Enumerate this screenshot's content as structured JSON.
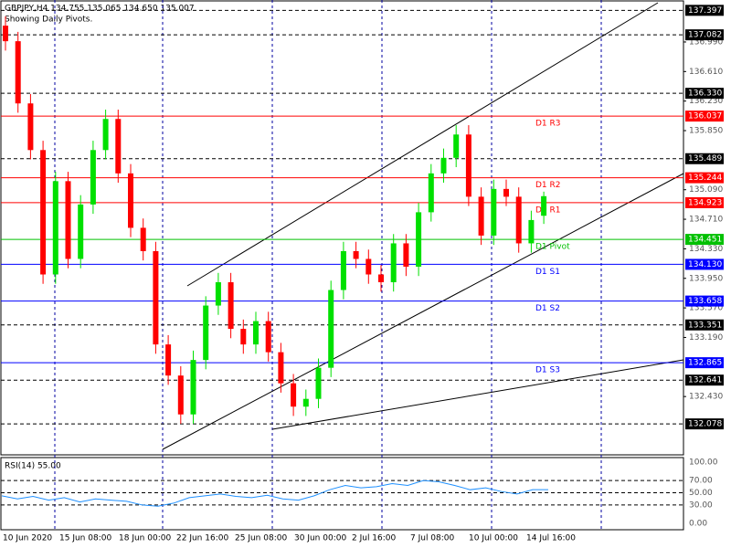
{
  "chart_data": {
    "type": "candlestick",
    "title": "GBPJPY,H4 134.755 135.065 134.650 135.007",
    "subtitle": "Showing Daily Pivots.",
    "up_color": "#00e000",
    "down_color": "#ff0000",
    "ylim": [
      131.68,
      137.53
    ],
    "yticks": [
      {
        "value": 136.99,
        "label": "136.990"
      },
      {
        "value": 136.61,
        "label": "136.610"
      },
      {
        "value": 136.23,
        "label": "136.230"
      },
      {
        "value": 135.85,
        "label": "135.850"
      },
      {
        "value": 135.09,
        "label": "135.090"
      },
      {
        "value": 134.71,
        "label": "134.710"
      },
      {
        "value": 134.33,
        "label": "134.330"
      },
      {
        "value": 133.95,
        "label": "133.950"
      },
      {
        "value": 133.57,
        "label": "133.570"
      },
      {
        "value": 133.19,
        "label": "133.190"
      },
      {
        "value": 132.43,
        "label": "132.430"
      }
    ],
    "levels": [
      {
        "value": 137.397,
        "label": "137.397"
      },
      {
        "value": 137.082,
        "label": "137.082"
      },
      {
        "value": 136.33,
        "label": "136.330"
      },
      {
        "value": 135.489,
        "label": "135.489"
      },
      {
        "value": 133.351,
        "label": "133.351"
      },
      {
        "value": 132.641,
        "label": "132.641"
      },
      {
        "value": 132.078,
        "label": "132.078"
      }
    ],
    "pivots": [
      {
        "name": "D1 R3",
        "value": 136.037,
        "label": "136.037",
        "color": "#ff0000"
      },
      {
        "name": "D1 R2",
        "value": 135.244,
        "label": "135.244",
        "color": "#ff0000"
      },
      {
        "name": "D1 R1",
        "value": 134.923,
        "label": "134.923",
        "color": "#ff0000"
      },
      {
        "name": "D1 Pivot",
        "value": 134.451,
        "label": "134.451",
        "color": "#00c000"
      },
      {
        "name": "D1 S1",
        "value": 134.13,
        "label": "134.130",
        "color": "#0000ff"
      },
      {
        "name": "D1 S2",
        "value": 133.658,
        "label": "133.658",
        "color": "#0000ff"
      },
      {
        "name": "D1 S3",
        "value": 132.865,
        "label": "132.865",
        "color": "#0000ff"
      }
    ],
    "xlabels": [
      "10 Jun 2020",
      "15 Jun 08:00",
      "18 Jun 00:00",
      "22 Jun 16:00",
      "25 Jun 08:00",
      "30 Jun 00:00",
      "2 Jul 16:00",
      "7 Jul 08:00",
      "10 Jul 00:00",
      "14 Jul 16:00"
    ],
    "candles": [
      [
        137.2,
        137.32,
        136.88,
        137.0
      ],
      [
        137.0,
        137.12,
        136.08,
        136.2
      ],
      [
        136.2,
        136.32,
        135.48,
        135.6
      ],
      [
        135.6,
        135.72,
        133.88,
        134.0
      ],
      [
        134.0,
        135.32,
        133.88,
        135.2
      ],
      [
        135.2,
        135.32,
        134.08,
        134.2
      ],
      [
        134.2,
        135.02,
        134.08,
        134.9
      ],
      [
        134.9,
        135.72,
        134.78,
        135.6
      ],
      [
        135.6,
        136.12,
        135.48,
        136.0
      ],
      [
        136.0,
        136.12,
        135.18,
        135.3
      ],
      [
        135.3,
        135.42,
        134.48,
        134.6
      ],
      [
        134.6,
        134.72,
        134.18,
        134.3
      ],
      [
        134.3,
        134.42,
        132.98,
        133.1
      ],
      [
        133.1,
        133.22,
        132.58,
        132.7
      ],
      [
        132.7,
        132.82,
        132.08,
        132.2
      ],
      [
        132.2,
        133.02,
        132.08,
        132.9
      ],
      [
        132.9,
        133.72,
        132.78,
        133.6
      ],
      [
        133.6,
        134.02,
        133.48,
        133.9
      ],
      [
        133.9,
        134.02,
        133.18,
        133.3
      ],
      [
        133.3,
        133.42,
        132.98,
        133.1
      ],
      [
        133.1,
        133.52,
        132.98,
        133.4
      ],
      [
        133.4,
        133.52,
        132.88,
        133.0
      ],
      [
        133.0,
        133.12,
        132.48,
        132.6
      ],
      [
        132.6,
        132.72,
        132.18,
        132.3
      ],
      [
        132.3,
        132.52,
        132.18,
        132.4
      ],
      [
        132.4,
        132.92,
        132.28,
        132.8
      ],
      [
        132.8,
        133.92,
        132.68,
        133.8
      ],
      [
        133.8,
        134.42,
        133.68,
        134.3
      ],
      [
        134.3,
        134.42,
        134.08,
        134.2
      ],
      [
        134.2,
        134.32,
        133.88,
        134.0
      ],
      [
        134.0,
        134.12,
        133.78,
        133.9
      ],
      [
        133.9,
        134.52,
        133.78,
        134.4
      ],
      [
        134.4,
        134.52,
        133.98,
        134.1
      ],
      [
        134.1,
        134.92,
        133.98,
        134.8
      ],
      [
        134.8,
        135.42,
        134.68,
        135.3
      ],
      [
        135.3,
        135.62,
        135.18,
        135.5
      ],
      [
        135.5,
        135.92,
        135.38,
        135.8
      ],
      [
        135.8,
        135.92,
        134.88,
        135.0
      ],
      [
        135.0,
        135.12,
        134.38,
        134.5
      ],
      [
        134.5,
        135.22,
        134.38,
        135.1
      ],
      [
        135.1,
        135.22,
        134.88,
        135.0
      ],
      [
        135.0,
        135.12,
        134.28,
        134.4
      ],
      [
        134.4,
        134.82,
        134.28,
        134.7
      ],
      [
        134.755,
        135.065,
        134.65,
        135.007
      ]
    ],
    "rsi": {
      "label": "RSI(14) 55.00",
      "color": "#1e90ff",
      "ylim": [
        -10.4,
        109
      ],
      "yticks": [
        {
          "value": 100,
          "label": "100.00"
        },
        {
          "value": 70,
          "label": "70.00"
        },
        {
          "value": 50,
          "label": "50.00"
        },
        {
          "value": 30,
          "label": "30.00"
        },
        {
          "value": 0,
          "label": "0.00"
        }
      ],
      "values": [
        45,
        40,
        44,
        38,
        42,
        35,
        40,
        38,
        36,
        30,
        28,
        33,
        42,
        45,
        48,
        44,
        42,
        46,
        40,
        38,
        45,
        55,
        62,
        58,
        60,
        65,
        62,
        70,
        68,
        62,
        55,
        58,
        52,
        48,
        55,
        55
      ]
    }
  }
}
